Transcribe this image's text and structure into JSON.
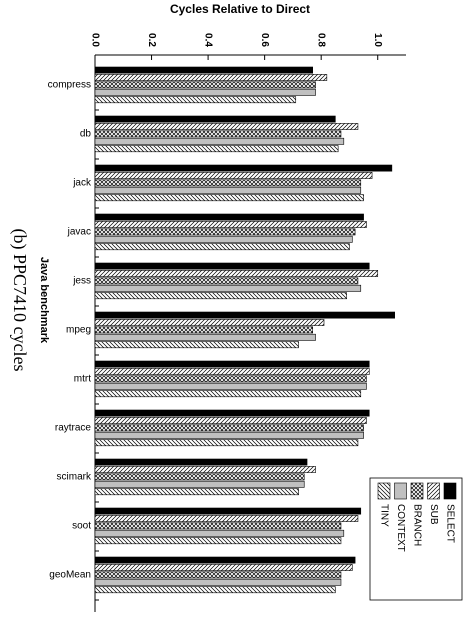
{
  "chart_data": {
    "type": "hbar",
    "title": "Cycles Relative to Direct",
    "y_label": "Java benchmark",
    "caption": "(b) PPC7410 cycles",
    "categories": [
      "compress",
      "db",
      "jack",
      "javac",
      "jess",
      "mpeg",
      "mtrt",
      "raytrace",
      "scimark",
      "soot",
      "geoMean"
    ],
    "series": [
      {
        "name": "SELECT",
        "color": "#000000",
        "hatch": "none",
        "values": [
          0.77,
          0.85,
          1.05,
          0.95,
          0.97,
          1.06,
          0.97,
          0.97,
          0.75,
          0.94,
          0.92
        ]
      },
      {
        "name": "SUB",
        "color": "#ffffff",
        "hatch": "forward",
        "values": [
          0.82,
          0.93,
          0.98,
          0.96,
          1.0,
          0.81,
          0.97,
          0.96,
          0.78,
          0.93,
          0.91
        ]
      },
      {
        "name": "BRANCH",
        "color": "#ffffff",
        "hatch": "cross",
        "values": [
          0.78,
          0.87,
          0.94,
          0.92,
          0.93,
          0.77,
          0.96,
          0.95,
          0.74,
          0.87,
          0.87
        ]
      },
      {
        "name": "CONTEXT",
        "color": "#c0c0c0",
        "hatch": "none",
        "values": [
          0.78,
          0.88,
          0.94,
          0.91,
          0.94,
          0.78,
          0.96,
          0.95,
          0.74,
          0.88,
          0.87
        ]
      },
      {
        "name": "TINY",
        "color": "#ffffff",
        "hatch": "backward",
        "values": [
          0.71,
          0.86,
          0.95,
          0.9,
          0.89,
          0.72,
          0.94,
          0.93,
          0.72,
          0.87,
          0.85
        ]
      }
    ],
    "xlim": [
      0,
      1.1
    ],
    "xticks": [
      {
        "value": 0,
        "label": "0.0"
      },
      {
        "value": 0.2,
        "label": "0.2"
      },
      {
        "value": 0.4,
        "label": "0.4"
      },
      {
        "value": 0.6,
        "label": "0.6"
      },
      {
        "value": 0.8,
        "label": "0.8"
      },
      {
        "value": 1,
        "label": "1.0"
      }
    ],
    "grid": false,
    "legend": "bottom right"
  }
}
